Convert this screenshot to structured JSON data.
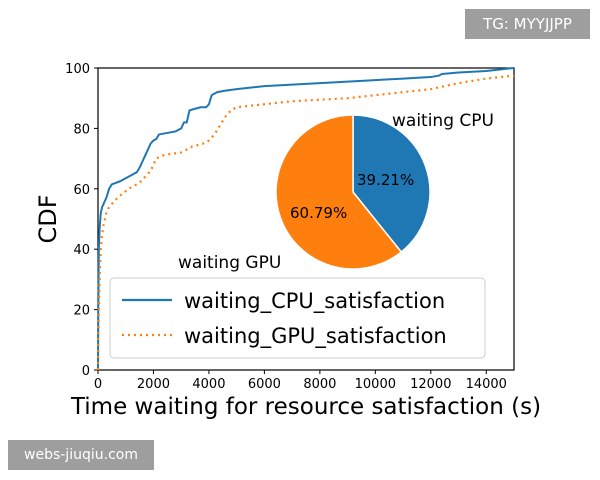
{
  "watermarks": {
    "top": "TG: MYYJJPP",
    "bottom": "webs-jiuqiu.com"
  },
  "colors": {
    "cpu": "#1f77b4",
    "gpu": "#ff7f0e",
    "axis": "#000000"
  },
  "chart_data": [
    {
      "type": "line",
      "xlabel": "Time waiting for resource satisfaction (s)",
      "ylabel": "CDF",
      "xlim": [
        0,
        15000
      ],
      "ylim": [
        0,
        100
      ],
      "xticks": [
        0,
        2000,
        4000,
        6000,
        8000,
        10000,
        12000,
        14000
      ],
      "yticks": [
        0,
        20,
        40,
        60,
        80,
        100
      ],
      "grid": false,
      "legend_position": "lower-left",
      "series": [
        {
          "name": "waiting_CPU_satisfaction",
          "style": "solid",
          "color": "#1f77b4",
          "x": [
            0,
            10,
            30,
            60,
            100,
            150,
            200,
            250,
            300,
            400,
            500,
            800,
            1000,
            1200,
            1400,
            1500,
            1600,
            1700,
            1800,
            1900,
            2000,
            2100,
            2200,
            2500,
            2800,
            3000,
            3100,
            3200,
            3300,
            3500,
            3700,
            3800,
            3900,
            4000,
            4100,
            4300,
            4600,
            5000,
            6000,
            7000,
            8000,
            9000,
            10000,
            11000,
            12000,
            12300,
            12400,
            13000,
            14000,
            15000
          ],
          "y": [
            0,
            20,
            40,
            47,
            52,
            54,
            55,
            56,
            57,
            60,
            61.5,
            62.5,
            63.5,
            64.5,
            65.5,
            67,
            69,
            71,
            73,
            75,
            76,
            76.5,
            78,
            78.5,
            79,
            80,
            82,
            82,
            86,
            86.5,
            87,
            87,
            87,
            88,
            91,
            92,
            92.5,
            93,
            94,
            94.5,
            95,
            95.5,
            96,
            96.5,
            97,
            97.5,
            98,
            98.5,
            99,
            100
          ]
        },
        {
          "name": "waiting_GPU_satisfaction",
          "style": "dotted",
          "color": "#ff7f0e",
          "x": [
            0,
            10,
            30,
            60,
            100,
            150,
            200,
            250,
            300,
            400,
            500,
            700,
            900,
            1100,
            1300,
            1500,
            1700,
            1900,
            2000,
            2100,
            2300,
            2600,
            3000,
            3200,
            3400,
            3600,
            3800,
            4000,
            4200,
            4400,
            4600,
            4800,
            5000,
            6000,
            7000,
            8000,
            9000,
            10000,
            11000,
            12000,
            12500,
            13000,
            14000,
            15000
          ],
          "y": [
            0,
            10,
            20,
            30,
            40,
            45,
            48,
            50,
            52,
            54,
            55,
            57,
            58.5,
            60,
            61,
            62,
            64,
            66,
            68,
            70,
            71,
            71.5,
            72,
            73,
            74,
            74.5,
            75,
            76,
            78,
            81,
            84,
            86,
            87,
            88,
            89,
            89.5,
            90,
            91,
            92,
            93,
            94,
            95,
            96.5,
            97.5
          ]
        }
      ]
    },
    {
      "type": "pie",
      "slices": [
        {
          "label": "waiting CPU",
          "value": 39.21,
          "value_label": "39.21%",
          "color": "#1f77b4"
        },
        {
          "label": "waiting GPU",
          "value": 60.79,
          "value_label": "60.79%",
          "color": "#ff7f0e"
        }
      ],
      "start": "top",
      "direction": "clockwise"
    }
  ]
}
